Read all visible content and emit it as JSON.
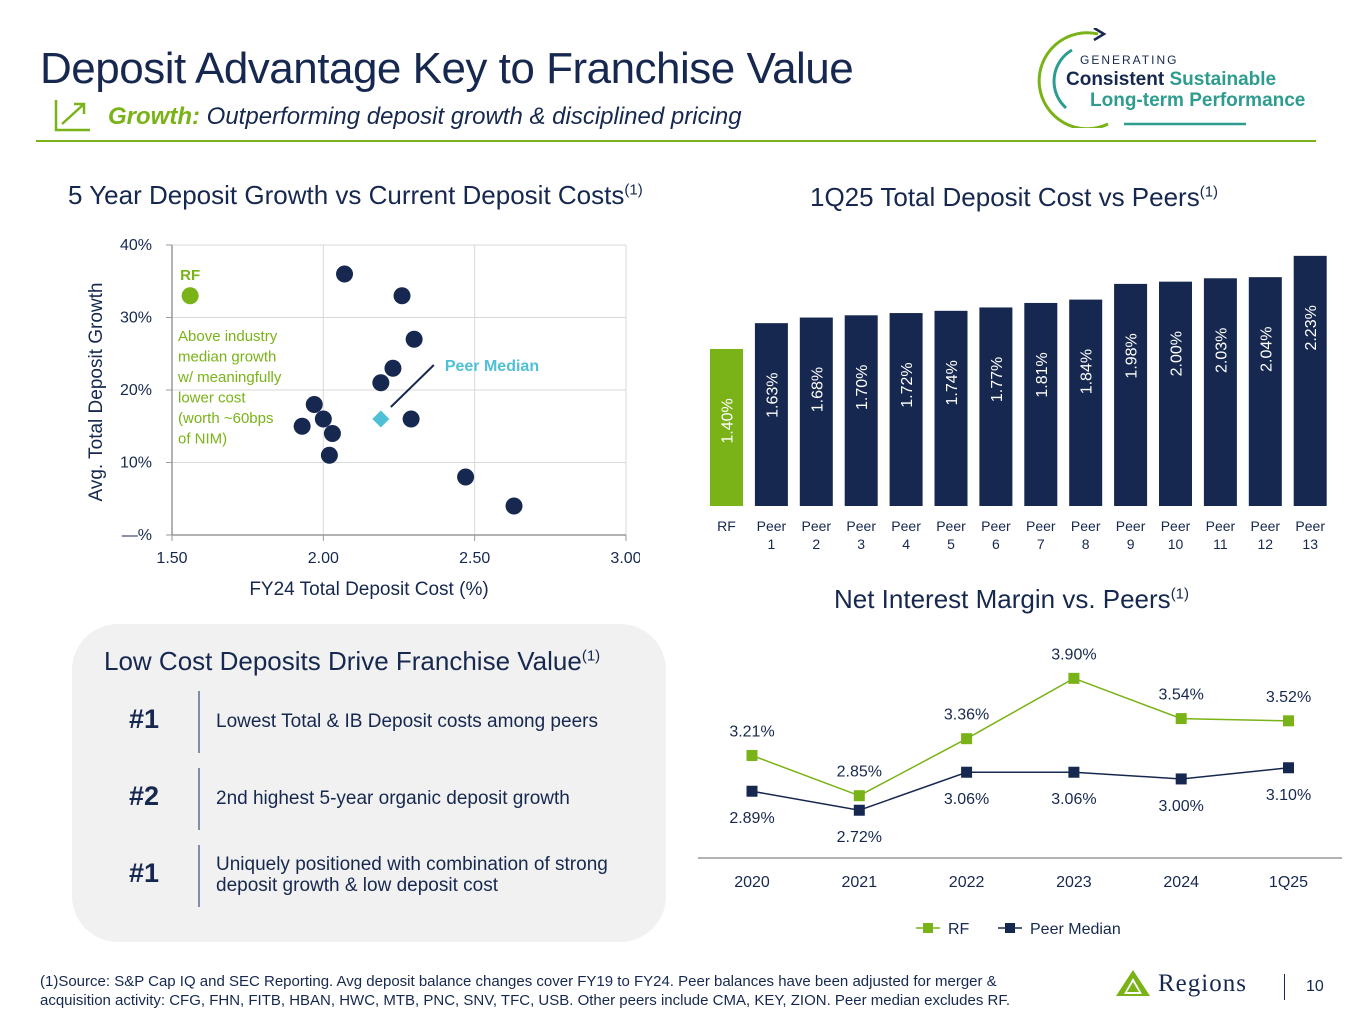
{
  "header": {
    "title": "Deposit Advantage Key to Franchise Value",
    "subtitle_accent": "Growth:",
    "subtitle_text": "Outperforming deposit growth & disciplined pricing"
  },
  "logo": {
    "line0": "GENERATING",
    "line1a": "Consistent",
    "line1b": "Sustainable",
    "line2": "Long-term Performance"
  },
  "colors": {
    "navy": "#16284f",
    "green": "#7ab317",
    "teal": "#4fc0d6",
    "grid": "#d9d9d9"
  },
  "chart_data": [
    {
      "type": "scatter",
      "title": "5 Year Deposit Growth vs Current Deposit Costs",
      "title_note": "(1)",
      "xlabel": "FY24 Total Deposit Cost (%)",
      "ylabel": "Avg. Total Deposit Growth",
      "xlim": [
        1.5,
        3.0
      ],
      "ylim": [
        0,
        40
      ],
      "xticks": [
        "1.50",
        "2.00",
        "2.50",
        "3.00"
      ],
      "yticks": [
        "—%",
        "10%",
        "20%",
        "30%",
        "40%"
      ],
      "rf_point": {
        "label": "RF",
        "x": 1.56,
        "y": 33
      },
      "peer_median": {
        "label": "Peer Median",
        "x": 2.19,
        "y": 16
      },
      "peers": [
        {
          "x": 2.07,
          "y": 36
        },
        {
          "x": 2.26,
          "y": 33
        },
        {
          "x": 2.3,
          "y": 27
        },
        {
          "x": 2.23,
          "y": 23
        },
        {
          "x": 2.19,
          "y": 21
        },
        {
          "x": 1.97,
          "y": 18
        },
        {
          "x": 2.0,
          "y": 16
        },
        {
          "x": 1.93,
          "y": 15
        },
        {
          "x": 2.03,
          "y": 14
        },
        {
          "x": 2.02,
          "y": 11
        },
        {
          "x": 2.29,
          "y": 16
        },
        {
          "x": 2.47,
          "y": 8
        },
        {
          "x": 2.63,
          "y": 4
        }
      ],
      "annotation": [
        "Above industry",
        "median growth",
        "w/ meaningfully",
        "lower cost",
        "(worth ~60bps",
        "of NIM)"
      ]
    },
    {
      "type": "bar",
      "title": "1Q25 Total Deposit Cost vs Peers",
      "title_note": "(1)",
      "categories": [
        "RF",
        "Peer 1",
        "Peer 2",
        "Peer 3",
        "Peer 4",
        "Peer 5",
        "Peer 6",
        "Peer 7",
        "Peer 8",
        "Peer 9",
        "Peer 10",
        "Peer 11",
        "Peer 12",
        "Peer 13"
      ],
      "cat_line1": [
        "RF",
        "Peer",
        "Peer",
        "Peer",
        "Peer",
        "Peer",
        "Peer",
        "Peer",
        "Peer",
        "Peer",
        "Peer",
        "Peer",
        "Peer",
        "Peer"
      ],
      "cat_line2": [
        "",
        "1",
        "2",
        "3",
        "4",
        "5",
        "6",
        "7",
        "8",
        "9",
        "10",
        "11",
        "12",
        "13"
      ],
      "values": [
        1.4,
        1.63,
        1.68,
        1.7,
        1.72,
        1.74,
        1.77,
        1.81,
        1.84,
        1.98,
        2.0,
        2.03,
        2.04,
        2.23
      ],
      "labels": [
        "1.40%",
        "1.63%",
        "1.68%",
        "1.70%",
        "1.72%",
        "1.74%",
        "1.77%",
        "1.81%",
        "1.84%",
        "1.98%",
        "2.00%",
        "2.03%",
        "2.04%",
        "2.23%"
      ],
      "ylim": [
        0,
        2.3
      ]
    },
    {
      "type": "line",
      "title": "Net Interest Margin vs. Peers",
      "title_note": "(1)",
      "categories": [
        "2020",
        "2021",
        "2022",
        "2023",
        "2024",
        "1Q25"
      ],
      "ylim": [
        2.4,
        4.1
      ],
      "series": [
        {
          "name": "RF",
          "values": [
            3.21,
            2.85,
            3.36,
            3.9,
            3.54,
            3.52
          ],
          "labels": [
            "3.21%",
            "2.85%",
            "3.36%",
            "3.90%",
            "3.54%",
            "3.52%"
          ]
        },
        {
          "name": "Peer Median",
          "values": [
            2.89,
            2.72,
            3.06,
            3.06,
            3.0,
            3.1
          ],
          "labels": [
            "2.89%",
            "2.72%",
            "3.06%",
            "3.06%",
            "3.00%",
            "3.10%"
          ]
        }
      ]
    }
  ],
  "panel": {
    "title": "Low Cost Deposits Drive Franchise Value",
    "title_note": "(1)",
    "items": [
      {
        "rank": "#1",
        "text": "Lowest Total & IB Deposit costs among peers"
      },
      {
        "rank": "#2",
        "text": "2nd highest 5-year organic deposit growth"
      },
      {
        "rank": "#1",
        "text": "Uniquely positioned with combination of strong deposit growth & low deposit cost"
      }
    ]
  },
  "footer": {
    "footnote": "(1)Source: S&P Cap IQ and SEC Reporting. Avg deposit balance changes cover FY19 to FY24. Peer balances have been adjusted for merger & acquisition activity: CFG, FHN, FITB, HBAN, HWC, MTB, PNC, SNV, TFC, USB.  Other peers include CMA, KEY, ZION. Peer median excludes RF.",
    "brand": "Regions",
    "page_number": "10"
  }
}
